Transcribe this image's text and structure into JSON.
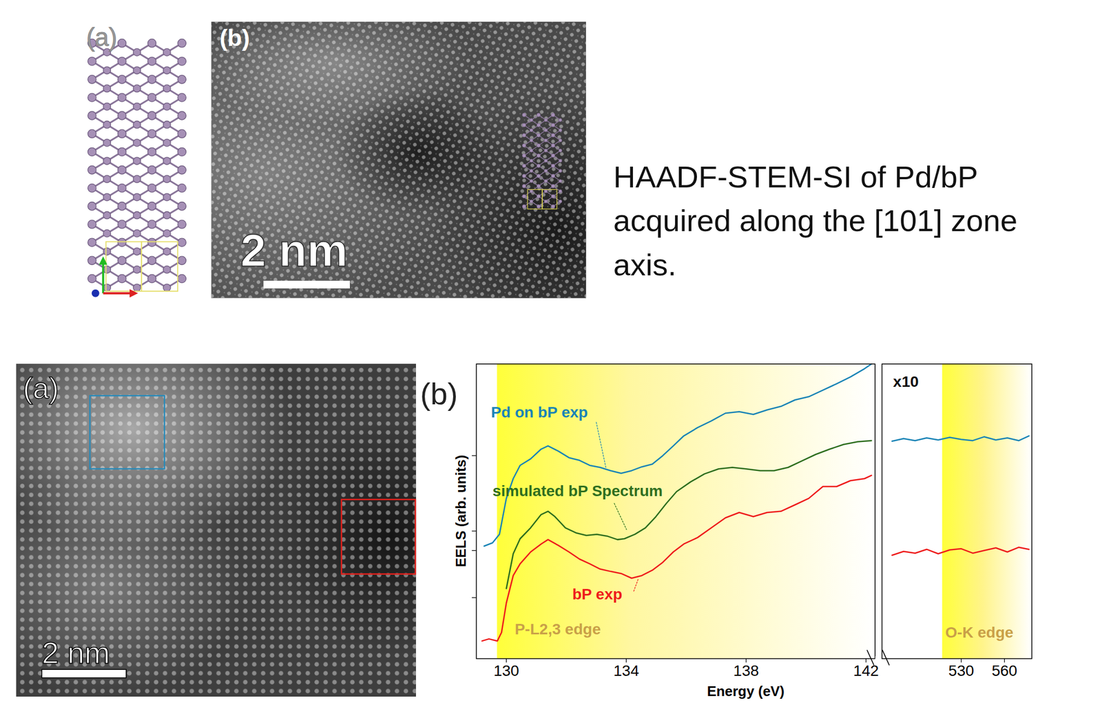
{
  "figure": {
    "top": {
      "panel_a": {
        "label": "(a)"
      },
      "panel_b": {
        "label": "(b)",
        "scale_bar": "2 nm"
      },
      "caption": "HAADF-STEM-SI of Pd/bP acquired along the [101] zone axis."
    },
    "bottom": {
      "panel_a": {
        "label": "(a)",
        "scale_bar": "2 nm"
      },
      "panel_b": {
        "label": "(b)"
      }
    }
  },
  "chart_data": [
    {
      "type": "line",
      "x_label": "Energy (eV)",
      "y_label": "EELS (arb. units)",
      "xlim": [
        129,
        142.3
      ],
      "xticks": [
        130,
        134,
        138,
        142
      ],
      "ylim": [
        0,
        100
      ],
      "yticks": [
        20.7,
        36.7,
        43.3,
        68.9
      ],
      "tick_labels": "x",
      "bands": [
        {
          "x0": 129.7,
          "x1": 142.3
        }
      ],
      "series": [
        {
          "name": "Pd on bP exp",
          "color": "#1a84b6",
          "label_at": [
            129.49,
            81.8
          ],
          "leader": [
            [
              133.0,
              80.2
            ],
            [
              133.32,
              64.9
            ]
          ],
          "x": [
            129.26,
            129.54,
            129.77,
            130.0,
            130.23,
            130.46,
            130.81,
            131.16,
            131.39,
            131.74,
            132.09,
            132.44,
            132.78,
            133.13,
            133.48,
            133.83,
            134.18,
            134.52,
            134.87,
            135.22,
            135.57,
            135.92,
            136.38,
            136.84,
            137.31,
            137.77,
            138.24,
            138.7,
            139.16,
            139.63,
            140.09,
            140.56,
            141.02,
            141.48,
            141.95,
            142.18
          ],
          "values": [
            38.2,
            39.3,
            42.2,
            54.4,
            61.1,
            65.6,
            67.8,
            71.1,
            72.2,
            70.4,
            68.2,
            67.3,
            65.6,
            64.9,
            63.8,
            62.9,
            63.8,
            65.1,
            66.0,
            68.9,
            72.2,
            75.6,
            78.4,
            80.7,
            83.3,
            83.8,
            82.9,
            84.4,
            85.6,
            87.8,
            88.9,
            91.1,
            93.3,
            95.6,
            98.4,
            100
          ]
        },
        {
          "name": "simulated bP Spectrum",
          "color": "#2e6e1f",
          "label_at": [
            129.54,
            55.1
          ],
          "leader": [
            [
              133.6,
              52.7
            ],
            [
              134.01,
              43.8
            ]
          ],
          "x": [
            130.0,
            130.23,
            130.46,
            130.81,
            131.16,
            131.39,
            131.62,
            131.97,
            132.32,
            132.67,
            133.02,
            133.36,
            133.71,
            133.94,
            134.29,
            134.64,
            134.99,
            135.34,
            135.68,
            136.15,
            136.61,
            137.08,
            137.54,
            138.0,
            138.47,
            138.93,
            139.4,
            139.86,
            140.32,
            140.79,
            141.25,
            141.72,
            142.18
          ],
          "values": [
            23.8,
            35.6,
            40.7,
            44.4,
            48.9,
            50.0,
            48.2,
            44.4,
            42.7,
            41.8,
            42.2,
            41.6,
            40.4,
            40.7,
            42.2,
            44.4,
            48.2,
            52.7,
            56.7,
            60.0,
            62.7,
            64.4,
            64.9,
            64.4,
            63.8,
            63.8,
            64.9,
            67.1,
            69.3,
            71.1,
            72.7,
            73.6,
            74.0
          ]
        },
        {
          "name": "bP exp",
          "color": "#ee1c1c",
          "label_at": [
            132.2,
            20.2
          ],
          "leader": [
            [
              134.25,
              22.9
            ],
            [
              134.41,
              27.3
            ]
          ],
          "x": [
            129.19,
            129.42,
            129.7,
            129.84,
            130.0,
            130.23,
            130.46,
            130.81,
            131.16,
            131.39,
            131.74,
            132.09,
            132.44,
            132.78,
            133.13,
            133.48,
            133.83,
            134.18,
            134.52,
            134.87,
            135.22,
            135.57,
            135.92,
            136.38,
            136.84,
            137.31,
            137.77,
            138.24,
            138.7,
            139.16,
            139.63,
            140.09,
            140.56,
            141.02,
            141.48,
            141.95,
            142.18
          ],
          "values": [
            6.0,
            6.7,
            6.0,
            8.9,
            18.9,
            28.2,
            32.2,
            36.2,
            38.9,
            40.4,
            38.4,
            36.2,
            33.8,
            32.2,
            30.4,
            29.6,
            28.9,
            27.3,
            28.2,
            30.0,
            32.7,
            36.2,
            38.9,
            41.1,
            44.4,
            47.8,
            49.6,
            48.2,
            49.6,
            50.0,
            52.2,
            54.4,
            58.4,
            58.4,
            60.4,
            61.1,
            62.2
          ]
        }
      ],
      "annotations": [
        {
          "text": "P-L2,3 edge",
          "x": 130.28,
          "y": 8.2,
          "color": "#c9a048"
        }
      ]
    },
    {
      "type": "line",
      "xlim": [
        475,
        579
      ],
      "xticks": [
        530,
        560
      ],
      "ylim": [
        0,
        100
      ],
      "tick_labels": "x",
      "bands": [
        {
          "x0": 517,
          "x1": 579
        }
      ],
      "series": [
        {
          "color": "#1a84b6",
          "x": [
            482,
            490,
            498,
            506,
            514,
            522,
            530,
            538,
            546,
            554,
            562,
            570,
            577
          ],
          "values": [
            73.8,
            74.7,
            74.0,
            74.9,
            74.2,
            75.1,
            74.4,
            74.0,
            75.3,
            74.2,
            74.9,
            74.0,
            75.6
          ]
        },
        {
          "color": "#ee1c1c",
          "x": [
            482,
            490,
            498,
            506,
            514,
            522,
            530,
            538,
            546,
            554,
            562,
            570,
            577
          ],
          "values": [
            35.1,
            36.4,
            35.8,
            37.1,
            35.6,
            36.9,
            37.3,
            35.8,
            36.7,
            37.6,
            36.2,
            37.8,
            37.1
          ]
        }
      ],
      "annotations": [
        {
          "text": "x10",
          "x": 482.7,
          "y": 92.2,
          "color": "#111111"
        },
        {
          "text": "O-K edge",
          "x": 518.9,
          "y": 7.1,
          "color": "#c9a048"
        }
      ]
    }
  ]
}
